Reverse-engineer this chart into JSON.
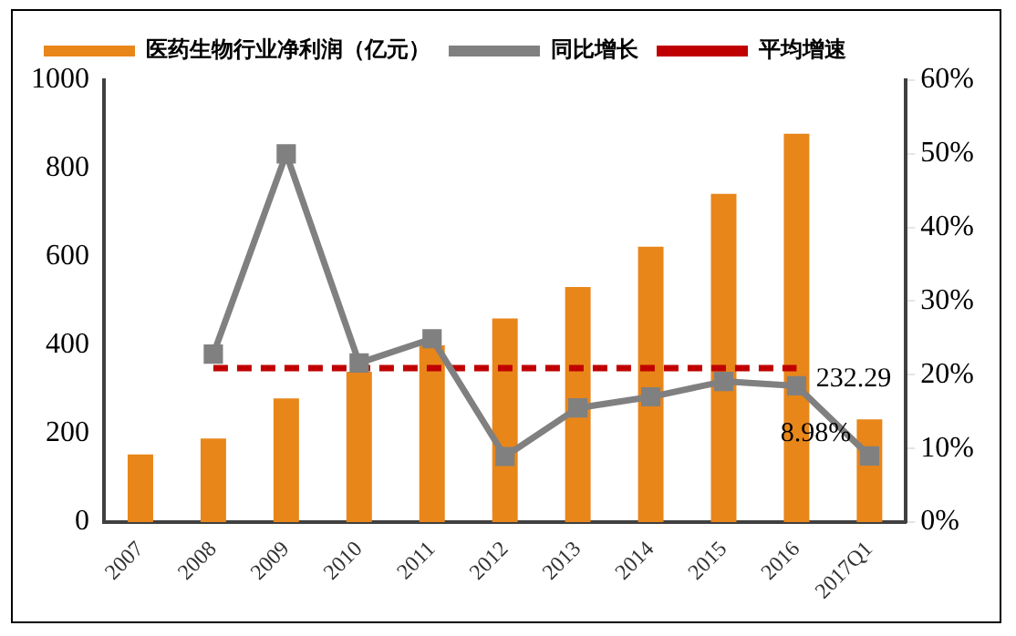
{
  "chart_data": {
    "type": "bar",
    "categories": [
      "2007",
      "2008",
      "2009",
      "2010",
      "2011",
      "2012",
      "2013",
      "2014",
      "2015",
      "2016",
      "2017Q1"
    ],
    "series": [
      {
        "name": "医药生物行业净利润（亿元）",
        "color": "#e8861a",
        "values": [
          153,
          189,
          280,
          340,
          400,
          461,
          532,
          623,
          743,
          879,
          232.29
        ],
        "value_labels": [
          null,
          null,
          null,
          null,
          null,
          null,
          null,
          null,
          null,
          null,
          "232.29"
        ]
      },
      {
        "name": "同比增长",
        "type": "line",
        "axis": "y2",
        "color": "#808080",
        "marker": "square",
        "values": [
          null,
          22.8,
          50.0,
          21.6,
          24.9,
          8.9,
          15.5,
          17.0,
          19.1,
          18.5,
          8.98
        ],
        "value_labels": [
          null,
          null,
          null,
          null,
          null,
          null,
          null,
          null,
          null,
          null,
          "8.98%"
        ]
      },
      {
        "name": "平均增速",
        "type": "line",
        "axis": "y2",
        "color": "#c00000",
        "marker": "none",
        "line_style": "dashed",
        "values": [
          null,
          20.9,
          20.9,
          20.9,
          20.9,
          20.9,
          20.9,
          20.9,
          20.9,
          20.9,
          null
        ]
      }
    ],
    "ylim": [
      0,
      1000
    ],
    "yticks": [
      0,
      200,
      400,
      600,
      800,
      1000
    ],
    "y2lim": [
      0,
      60
    ],
    "y2ticks": [
      {
        "value": 0,
        "label": "0%"
      },
      {
        "value": 10,
        "label": "10%"
      },
      {
        "value": 20,
        "label": "20%"
      },
      {
        "value": 30,
        "label": "30%"
      },
      {
        "value": 40,
        "label": "40%"
      },
      {
        "value": 50,
        "label": "50%"
      },
      {
        "value": 60,
        "label": "60%"
      }
    ],
    "grid": false,
    "legend": "top"
  }
}
